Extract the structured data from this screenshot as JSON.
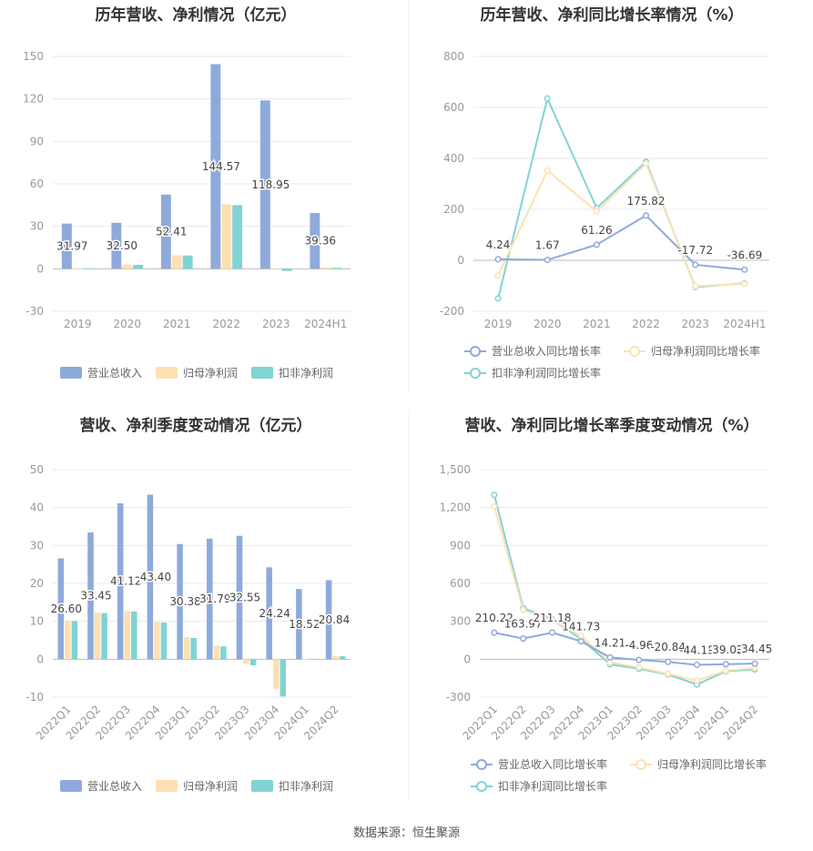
{
  "footer": "数据来源：恒生聚源",
  "colors": {
    "revenue": "#8eaadb",
    "net_profit": "#ffe0b2",
    "deducted_profit": "#80d4d4",
    "grid": "#e6e8f0",
    "axis_text": "#999999",
    "label_text": "#444444",
    "title_text": "#333333"
  },
  "chart_data": [
    {
      "id": "annual-values",
      "type": "bar",
      "title": "历年营收、净利情况（亿元）",
      "categories": [
        "2019",
        "2020",
        "2021",
        "2022",
        "2023",
        "2024H1"
      ],
      "ylim": [
        -30,
        150
      ],
      "yticks": [
        -30,
        0,
        30,
        60,
        90,
        120,
        150
      ],
      "yticks_labels": [
        "-30",
        "0",
        "30",
        "60",
        "90",
        "120",
        "150"
      ],
      "grid": true,
      "legend": "bottom",
      "series": [
        {
          "name": "营业总收入",
          "values": [
            31.97,
            32.5,
            52.41,
            144.57,
            118.95,
            39.36
          ],
          "labels": [
            "31.97",
            "32.50",
            "52.41",
            "144.57",
            "118.95",
            "39.36"
          ]
        },
        {
          "name": "归母净利润",
          "values": [
            0.3,
            3.0,
            9.5,
            45.5,
            -0.4,
            0.8
          ]
        },
        {
          "name": "扣非净利润",
          "values": [
            0.2,
            2.8,
            9.4,
            45.0,
            -1.5,
            0.7
          ]
        }
      ]
    },
    {
      "id": "annual-growth",
      "type": "line",
      "title": "历年营收、净利同比增长率情况（%）",
      "categories": [
        "2019",
        "2020",
        "2021",
        "2022",
        "2023",
        "2024H1"
      ],
      "ylim": [
        -200,
        800
      ],
      "yticks": [
        -200,
        0,
        200,
        400,
        600,
        800
      ],
      "yticks_labels": [
        "-200",
        "0",
        "200",
        "400",
        "600",
        "800"
      ],
      "grid": true,
      "legend": "bottom",
      "series": [
        {
          "name": "营业总收入同比增长率",
          "values": [
            4.24,
            1.67,
            61.26,
            175.82,
            -17.72,
            -36.69
          ],
          "labels": [
            "4.24",
            "1.67",
            "61.26",
            "175.82",
            "-17.72",
            "-36.69"
          ]
        },
        {
          "name": "归母净利润同比增长率",
          "values": [
            -60,
            352,
            192,
            380,
            -102,
            -92
          ]
        },
        {
          "name": "扣非净利润同比增长率",
          "values": [
            -150,
            635,
            205,
            387,
            -105,
            -90
          ]
        }
      ]
    },
    {
      "id": "quarterly-values",
      "type": "bar",
      "title": "营收、净利季度变动情况（亿元）",
      "categories": [
        "2022Q1",
        "2022Q2",
        "2022Q3",
        "2022Q4",
        "2023Q1",
        "2023Q2",
        "2023Q3",
        "2023Q4",
        "2024Q1",
        "2024Q2"
      ],
      "ylim": [
        -10,
        50
      ],
      "yticks": [
        -10,
        0,
        10,
        20,
        30,
        40,
        50
      ],
      "yticks_labels": [
        "-10",
        "0",
        "10",
        "20",
        "30",
        "40",
        "50"
      ],
      "grid": true,
      "legend": "bottom",
      "series": [
        {
          "name": "营业总收入",
          "values": [
            26.6,
            33.45,
            41.12,
            43.4,
            30.38,
            31.79,
            32.55,
            24.24,
            18.52,
            20.84
          ],
          "labels": [
            "26.60",
            "33.45",
            "41.12",
            "43.40",
            "30.38",
            "31.79",
            "32.55",
            "24.24",
            "18.52",
            "20.84"
          ]
        },
        {
          "name": "归母净利润",
          "values": [
            10.2,
            12.3,
            12.7,
            9.8,
            5.8,
            3.6,
            -1.2,
            -7.8,
            0.1,
            0.9
          ]
        },
        {
          "name": "扣非净利润",
          "values": [
            10.1,
            12.2,
            12.6,
            9.7,
            5.6,
            3.4,
            -1.6,
            -9.8,
            0.1,
            0.8
          ]
        }
      ]
    },
    {
      "id": "quarterly-growth",
      "type": "line",
      "title": "营收、净利同比增长率季度变动情况（%）",
      "categories": [
        "2022Q1",
        "2022Q2",
        "2022Q3",
        "2022Q4",
        "2023Q1",
        "2023Q2",
        "2023Q3",
        "2023Q4",
        "2024Q1",
        "2024Q2"
      ],
      "ylim": [
        -300,
        1500
      ],
      "yticks": [
        -300,
        0,
        300,
        600,
        900,
        1200,
        1500
      ],
      "yticks_labels": [
        "-300",
        "0",
        "300",
        "600",
        "900",
        "1,200",
        "1,500"
      ],
      "grid": true,
      "legend": "bottom",
      "series": [
        {
          "name": "营业总收入同比增长率",
          "values": [
            210.22,
            163.97,
            211.18,
            141.73,
            14.21,
            -4.96,
            -20.84,
            -44.15,
            -39.02,
            -34.45
          ],
          "labels": [
            "210.22",
            "163.97",
            "211.18",
            "141.73",
            "14.21",
            "-4.96",
            "-20.84",
            "-44.15",
            "-39.02",
            "-34.45"
          ]
        },
        {
          "name": "归母净利润同比增长率",
          "values": [
            1210,
            390,
            310,
            185,
            -25,
            -65,
            -115,
            -170,
            -90,
            -70
          ]
        },
        {
          "name": "扣非净利润同比增长率",
          "values": [
            1300,
            405,
            315,
            160,
            -40,
            -75,
            -120,
            -200,
            -95,
            -80
          ]
        }
      ]
    }
  ]
}
